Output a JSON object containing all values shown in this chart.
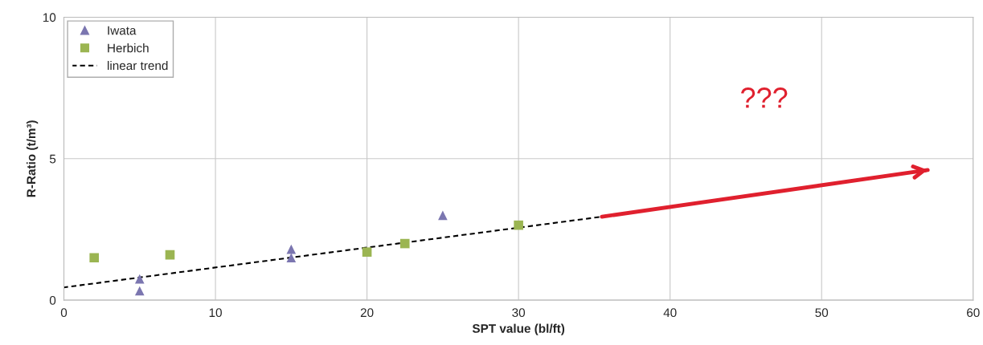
{
  "chart_data": {
    "type": "scatter",
    "xlabel": "SPT value (bl/ft)",
    "ylabel": "R-Ratio (t/m³)",
    "xlim": [
      0,
      60
    ],
    "xticks": [
      0,
      10,
      20,
      30,
      40,
      50,
      60
    ],
    "ylim": [
      0,
      10
    ],
    "yticks": [
      0,
      5,
      10
    ],
    "grid": true,
    "legend": "top left",
    "series": [
      {
        "name": "Iwata",
        "marker": "triangle",
        "color": "#7b76b0",
        "x": [
          5,
          5,
          15,
          15,
          25
        ],
        "values": [
          0.33,
          0.75,
          1.8,
          1.5,
          3.0
        ]
      },
      {
        "name": "Herbich",
        "marker": "square",
        "color": "#9bb552",
        "x": [
          2,
          7,
          20,
          22.5,
          30
        ],
        "values": [
          1.5,
          1.6,
          1.7,
          2.0,
          2.65
        ]
      },
      {
        "name": "linear trend",
        "type": "line",
        "line_style": "dashed",
        "color": "#000000",
        "x": [
          0,
          35.5
        ],
        "values": [
          0.45,
          2.95
        ]
      },
      {
        "type": "line",
        "color": "#e0202e",
        "x": [
          35.5,
          57
        ],
        "values": [
          2.95,
          4.6
        ]
      }
    ],
    "annotations": [
      "???"
    ]
  }
}
